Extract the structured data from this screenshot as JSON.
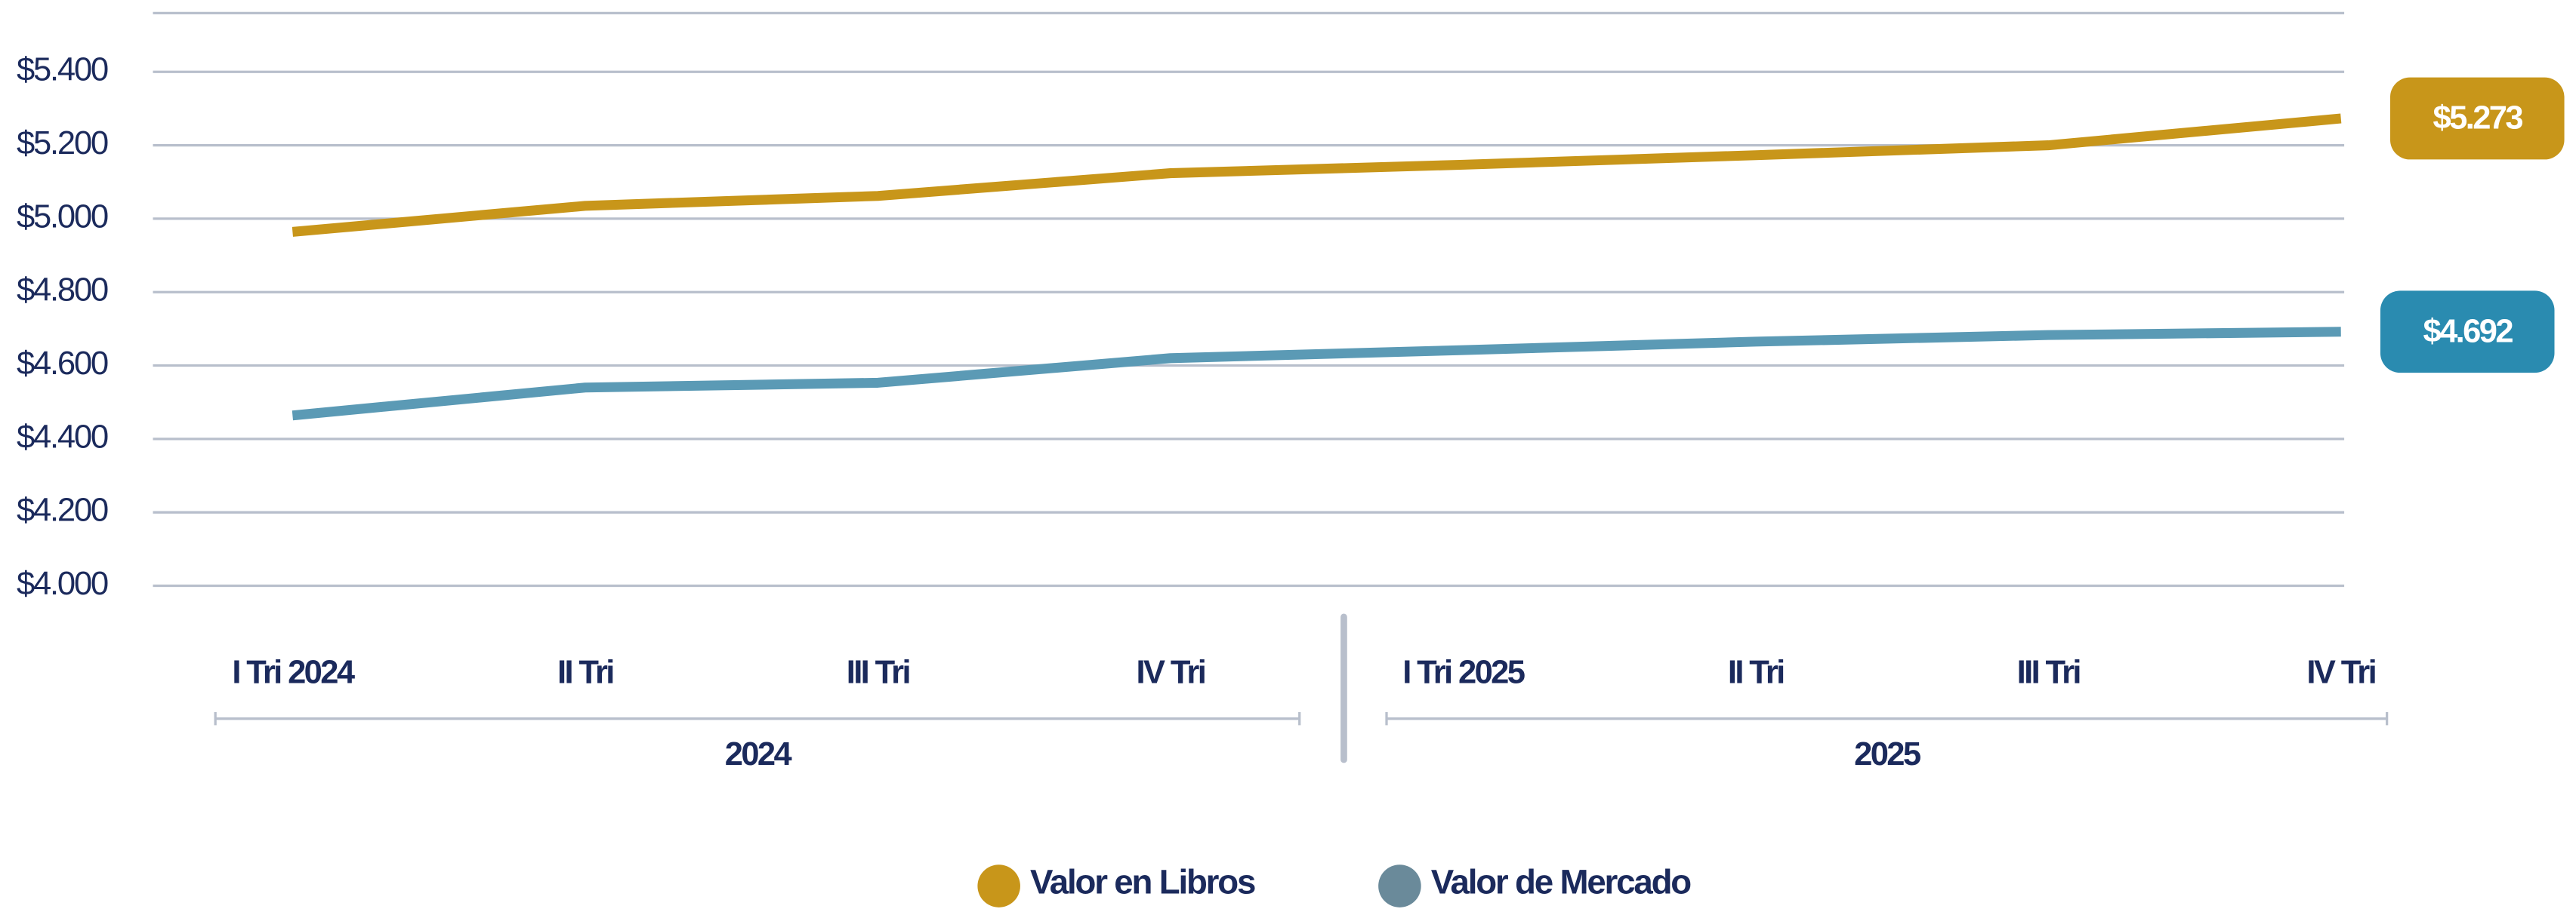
{
  "chart_data": {
    "type": "line",
    "categories": [
      "I Tri 2024",
      "II Tri",
      "III Tri",
      "IV Tri",
      "I Tri 2025",
      "II Tri",
      "III Tri",
      "IV Tri"
    ],
    "groups": [
      "2024",
      "2025"
    ],
    "series": [
      {
        "name": "Valor en Libros",
        "color": "#c8961a",
        "values": [
          4964,
          5035,
          5062,
          5124,
          5147,
          5173,
          5200,
          5273
        ],
        "value_labels": [
          null,
          null,
          null,
          null,
          null,
          null,
          null,
          "$5.273"
        ]
      },
      {
        "name": "Valor de Mercado",
        "color": "#5b9ab5",
        "values": [
          4464,
          4540,
          4553,
          4620,
          4642,
          4665,
          4683,
          4692
        ],
        "value_labels": [
          null,
          null,
          null,
          null,
          null,
          null,
          null,
          "$4.692"
        ]
      }
    ],
    "ylim": [
      4000,
      5560
    ],
    "yticks": [
      {
        "value": 4000,
        "label": "$4.000"
      },
      {
        "value": 4200,
        "label": "$4.200"
      },
      {
        "value": 4400,
        "label": "$4.400"
      },
      {
        "value": 4600,
        "label": "$4.600"
      },
      {
        "value": 4800,
        "label": "$4.800"
      },
      {
        "value": 5000,
        "label": "$5.000"
      },
      {
        "value": 5200,
        "label": "$5.200"
      },
      {
        "value": 5400,
        "label": "$5.400"
      }
    ],
    "grid": true,
    "legend": "bottom"
  }
}
